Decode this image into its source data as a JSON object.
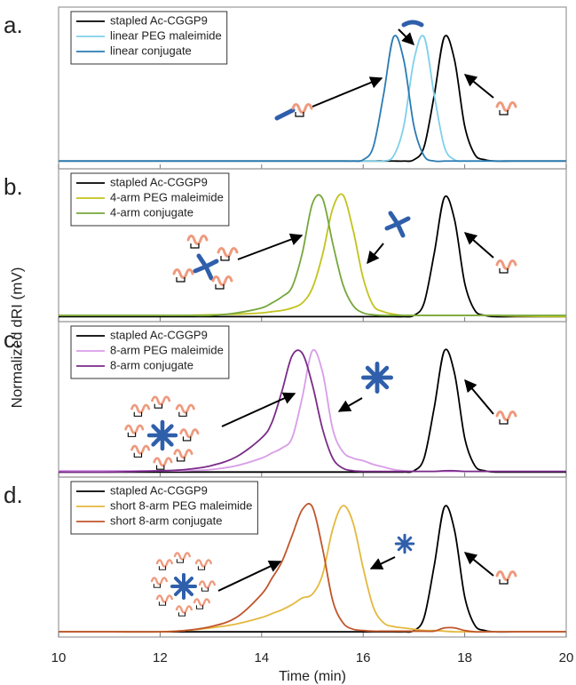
{
  "y_label": "Normalized dRI (mV)",
  "chart_data": [
    {
      "type": "line",
      "panel_label": "a.",
      "legend": "upper left",
      "x": [
        10,
        11,
        12,
        12.5,
        13,
        13.5,
        14,
        14.2,
        14.4,
        14.6,
        14.8,
        15,
        15.2,
        15.4,
        15.6,
        15.8,
        16,
        16.2,
        16.4,
        16.6,
        16.8,
        17,
        17.2,
        17.4,
        17.6,
        17.8,
        18,
        18.2,
        18.4,
        18.6,
        19,
        20
      ],
      "xlim": [
        10,
        20
      ],
      "ylim": [
        -0.05,
        1.2
      ],
      "series": [
        {
          "name": "stapled Ac-CGGP9",
          "color": "#000000",
          "values": [
            0.01,
            0.01,
            0.01,
            0.01,
            0.01,
            0.01,
            0.01,
            0.01,
            0.01,
            0.01,
            0.01,
            0.01,
            0.01,
            0.01,
            0.01,
            0.01,
            0.01,
            0.01,
            0.01,
            0.01,
            0.01,
            0.02,
            0.12,
            0.52,
            0.97,
            0.79,
            0.28,
            0.06,
            0.02,
            0.01,
            0.01,
            0.01
          ]
        },
        {
          "name": "linear PEG maleimide",
          "color": "#7fd0ea",
          "values": [
            0.01,
            0.01,
            0.01,
            0.01,
            0.01,
            0.01,
            0.01,
            0.01,
            0.01,
            0.01,
            0.01,
            0.01,
            0.01,
            0.01,
            0.01,
            0.01,
            0.01,
            0.01,
            0.01,
            0.05,
            0.28,
            0.79,
            0.97,
            0.52,
            0.12,
            0.02,
            0.01,
            0.01,
            0.01,
            0.01,
            0.01,
            0.01
          ]
        },
        {
          "name": "linear conjugate",
          "color": "#2a7bb2",
          "values": [
            0.01,
            0.01,
            0.01,
            0.01,
            0.01,
            0.01,
            0.01,
            0.01,
            0.01,
            0.01,
            0.01,
            0.01,
            0.01,
            0.01,
            0.01,
            0.01,
            0.02,
            0.12,
            0.52,
            0.97,
            0.79,
            0.28,
            0.05,
            0.01,
            0.01,
            0.01,
            0.01,
            0.01,
            0.01,
            0.01,
            0.01,
            0.01
          ]
        }
      ]
    },
    {
      "type": "line",
      "panel_label": "b.",
      "legend": "upper left",
      "x": [
        10,
        11,
        12,
        12.5,
        13,
        13.5,
        14,
        14.2,
        14.4,
        14.6,
        14.8,
        15,
        15.2,
        15.4,
        15.6,
        15.8,
        16,
        16.2,
        16.4,
        16.6,
        16.8,
        17,
        17.2,
        17.4,
        17.6,
        17.8,
        18,
        18.2,
        18.4,
        18.6,
        19,
        20
      ],
      "xlim": [
        10,
        20
      ],
      "ylim": [
        -0.03,
        1.2
      ],
      "series": [
        {
          "name": "stapled Ac-CGGP9",
          "color": "#000000",
          "values": [
            0.01,
            0.01,
            0.01,
            0.01,
            0.01,
            0.01,
            0.01,
            0.01,
            0.01,
            0.01,
            0.01,
            0.01,
            0.01,
            0.01,
            0.01,
            0.01,
            0.01,
            0.01,
            0.01,
            0.01,
            0.01,
            0.02,
            0.12,
            0.52,
            0.97,
            0.79,
            0.28,
            0.06,
            0.02,
            0.01,
            0.01,
            0.01
          ]
        },
        {
          "name": "4-arm PEG maleimide",
          "color": "#c2c31c",
          "values": [
            0.02,
            0.02,
            0.02,
            0.02,
            0.025,
            0.03,
            0.04,
            0.05,
            0.06,
            0.08,
            0.12,
            0.24,
            0.51,
            0.88,
            0.99,
            0.71,
            0.32,
            0.1,
            0.05,
            0.03,
            0.02,
            0.02,
            0.02,
            0.02,
            0.02,
            0.02,
            0.02,
            0.02,
            0.02,
            0.02,
            0.015,
            0.01
          ]
        },
        {
          "name": "4-arm conjugate",
          "color": "#76a73c",
          "values": [
            0.02,
            0.02,
            0.02,
            0.02,
            0.02,
            0.04,
            0.08,
            0.12,
            0.17,
            0.25,
            0.52,
            0.92,
            0.96,
            0.6,
            0.27,
            0.1,
            0.04,
            0.025,
            0.02,
            0.02,
            0.02,
            0.02,
            0.02,
            0.02,
            0.02,
            0.02,
            0.02,
            0.02,
            0.02,
            0.02,
            0.02,
            0.02
          ]
        }
      ]
    },
    {
      "type": "line",
      "panel_label": "c.",
      "legend": "upper left",
      "x": [
        10,
        11,
        12,
        12.5,
        13,
        13.5,
        14,
        14.2,
        14.4,
        14.6,
        14.8,
        15,
        15.2,
        15.4,
        15.6,
        15.8,
        16,
        16.2,
        16.4,
        16.6,
        16.8,
        17,
        17.2,
        17.4,
        17.6,
        17.8,
        18,
        18.2,
        18.4,
        18.6,
        19,
        20
      ],
      "xlim": [
        10,
        20
      ],
      "ylim": [
        -0.03,
        1.2
      ],
      "series": [
        {
          "name": "stapled Ac-CGGP9",
          "color": "#000000",
          "values": [
            0.01,
            0.01,
            0.01,
            0.01,
            0.01,
            0.01,
            0.01,
            0.01,
            0.01,
            0.01,
            0.01,
            0.01,
            0.01,
            0.01,
            0.01,
            0.01,
            0.01,
            0.01,
            0.01,
            0.01,
            0.01,
            0.02,
            0.12,
            0.52,
            0.97,
            0.79,
            0.28,
            0.06,
            0.02,
            0.01,
            0.01,
            0.01
          ]
        },
        {
          "name": "8-arm PEG maleimide",
          "color": "#d89de8",
          "values": [
            0.02,
            0.02,
            0.02,
            0.02,
            0.03,
            0.06,
            0.12,
            0.16,
            0.2,
            0.28,
            0.6,
            0.97,
            0.8,
            0.35,
            0.17,
            0.12,
            0.1,
            0.07,
            0.05,
            0.03,
            0.02,
            0.015,
            0.015,
            0.015,
            0.015,
            0.015,
            0.015,
            0.015,
            0.015,
            0.015,
            0.015,
            0.015
          ]
        },
        {
          "name": "8-arm conjugate",
          "color": "#7a2b88",
          "values": [
            0.01,
            0.01,
            0.02,
            0.03,
            0.06,
            0.13,
            0.28,
            0.4,
            0.65,
            0.93,
            0.95,
            0.7,
            0.35,
            0.12,
            0.04,
            0.02,
            0.015,
            0.015,
            0.015,
            0.015,
            0.015,
            0.015,
            0.015,
            0.015,
            0.02,
            0.02,
            0.015,
            0.015,
            0.015,
            0.015,
            0.015,
            0.015
          ]
        }
      ]
    },
    {
      "type": "line",
      "panel_label": "d.",
      "legend": "upper left",
      "x": [
        10,
        11,
        12,
        12.5,
        13,
        13.5,
        14,
        14.2,
        14.4,
        14.6,
        14.8,
        15,
        15.2,
        15.4,
        15.6,
        15.8,
        16,
        16.2,
        16.4,
        16.6,
        16.8,
        17,
        17.2,
        17.4,
        17.6,
        17.8,
        18,
        18.2,
        18.4,
        18.6,
        19,
        20
      ],
      "xlim": [
        10,
        20
      ],
      "ylim": [
        -0.03,
        1.2
      ],
      "xticks": [
        10,
        12,
        14,
        16,
        18,
        20
      ],
      "x_label": "Time (min)",
      "series": [
        {
          "name": "stapled Ac-CGGP9",
          "color": "#000000",
          "values": [
            0.01,
            0.01,
            0.01,
            0.01,
            0.01,
            0.01,
            0.01,
            0.01,
            0.01,
            0.01,
            0.01,
            0.01,
            0.01,
            0.01,
            0.01,
            0.01,
            0.01,
            0.01,
            0.01,
            0.01,
            0.01,
            0.02,
            0.12,
            0.52,
            0.97,
            0.79,
            0.28,
            0.06,
            0.02,
            0.01,
            0.01,
            0.01
          ]
        },
        {
          "name": "short 8-arm PEG maleimide",
          "color": "#e4b83e",
          "values": [
            0.01,
            0.01,
            0.01,
            0.02,
            0.04,
            0.07,
            0.12,
            0.15,
            0.18,
            0.22,
            0.27,
            0.3,
            0.45,
            0.8,
            0.98,
            0.85,
            0.5,
            0.2,
            0.08,
            0.05,
            0.04,
            0.03,
            0.02,
            0.02,
            0.015,
            0.01,
            0.01,
            0.01,
            0.01,
            0.01,
            0.01,
            0.01
          ]
        },
        {
          "name": "short 8-arm conjugate",
          "color": "#c0562b",
          "values": [
            0.01,
            0.01,
            0.01,
            0.02,
            0.05,
            0.12,
            0.3,
            0.42,
            0.55,
            0.75,
            0.95,
            0.97,
            0.65,
            0.25,
            0.08,
            0.03,
            0.02,
            0.015,
            0.015,
            0.015,
            0.015,
            0.015,
            0.015,
            0.015,
            0.04,
            0.04,
            0.02,
            0.01,
            0.01,
            0.01,
            0.01,
            0.01
          ]
        }
      ]
    }
  ]
}
